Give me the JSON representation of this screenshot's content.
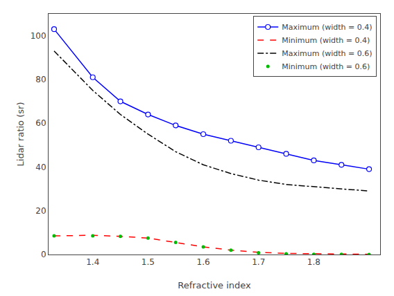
{
  "chart_data": {
    "type": "line",
    "xlabel": "Refractive index",
    "ylabel": "Lidar ratio (sr)",
    "x": [
      1.33,
      1.4,
      1.45,
      1.5,
      1.55,
      1.6,
      1.65,
      1.7,
      1.75,
      1.8,
      1.85,
      1.9
    ],
    "series": [
      {
        "name": "Maximum (width = 0.4)",
        "color": "#0000ff",
        "line_style": "solid",
        "marker": "circle",
        "values": [
          103,
          81,
          70,
          64,
          59,
          55,
          52,
          49,
          46,
          43,
          41,
          39
        ]
      },
      {
        "name": "Minimum (width = 0.4)",
        "color": "#ff0000",
        "line_style": "dashed",
        "marker": "none",
        "values": [
          8.5,
          8.8,
          8.3,
          7.5,
          5.5,
          3.5,
          2.0,
          1.0,
          0.5,
          0.3,
          0.2,
          0.1
        ]
      },
      {
        "name": "Maximum (width = 0.6)",
        "color": "#000000",
        "line_style": "dashdot",
        "marker": "none",
        "values": [
          93,
          75,
          64,
          55,
          47,
          41,
          37,
          34,
          32,
          31,
          30,
          29
        ]
      },
      {
        "name": "Minimum (width = 0.6)",
        "color": "#00bb00",
        "line_style": "none",
        "marker": "point",
        "values": [
          8.5,
          8.5,
          8.3,
          7.5,
          5.5,
          3.5,
          2.0,
          0.8,
          0.3,
          0.1,
          0.05,
          0.02
        ]
      }
    ],
    "xlim": [
      1.32,
      1.92
    ],
    "ylim": [
      0,
      110
    ],
    "xticks": [
      1.4,
      1.5,
      1.6,
      1.7,
      1.8
    ],
    "yticks": [
      0,
      20,
      40,
      60,
      80,
      100
    ],
    "grid": false,
    "legend": "upper right"
  }
}
